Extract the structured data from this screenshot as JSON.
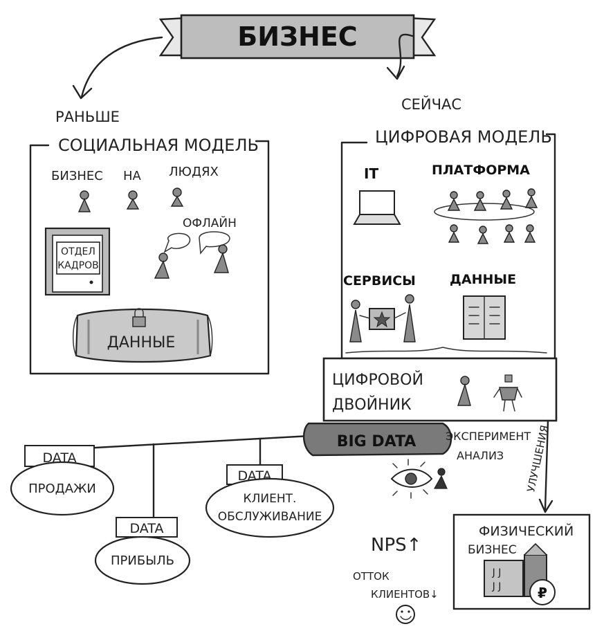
{
  "title": "БИЗНЕС",
  "left": {
    "when": "РАНЬШЕ",
    "model": "СОЦИАЛЬНАЯ МОДЕЛЬ",
    "people_caption": [
      "БИЗНЕС",
      "НА",
      "ЛЮДЯХ"
    ],
    "offline": "ОФЛАЙН",
    "hr_sign": [
      "ОТДЕЛ",
      "КАДРОВ"
    ],
    "data": "ДАННЫЕ"
  },
  "right": {
    "when": "СЕЙЧАС",
    "model": "ЦИФРОВАЯ МОДЕЛЬ",
    "it": "IT",
    "platform": "ПЛАТФОРМА",
    "services": "СЕРВИСЫ",
    "data": "ДАННЫЕ",
    "twin": [
      "ЦИФРОВОЙ",
      "ДВОЙНИК"
    ]
  },
  "bigdata": "BIG DATA",
  "experiment": [
    "ЭКСПЕРИМЕНТ",
    "АНАЛИЗ"
  ],
  "improvements": "УЛУЧШЕНИЯ",
  "data_tag": "DATA",
  "sales": "ПРОДАЖИ",
  "profit": "ПРИБЫЛЬ",
  "client": [
    "КЛИЕНТ.",
    "ОБСЛУЖИВАНИЕ"
  ],
  "physical": [
    "ФИЗИЧЕСКИЙ",
    "БИЗНЕС"
  ],
  "nps": "NPS↑",
  "churn": [
    "ОТТОК",
    "КЛИЕНТОВ↓"
  ],
  "ruble": "₽"
}
